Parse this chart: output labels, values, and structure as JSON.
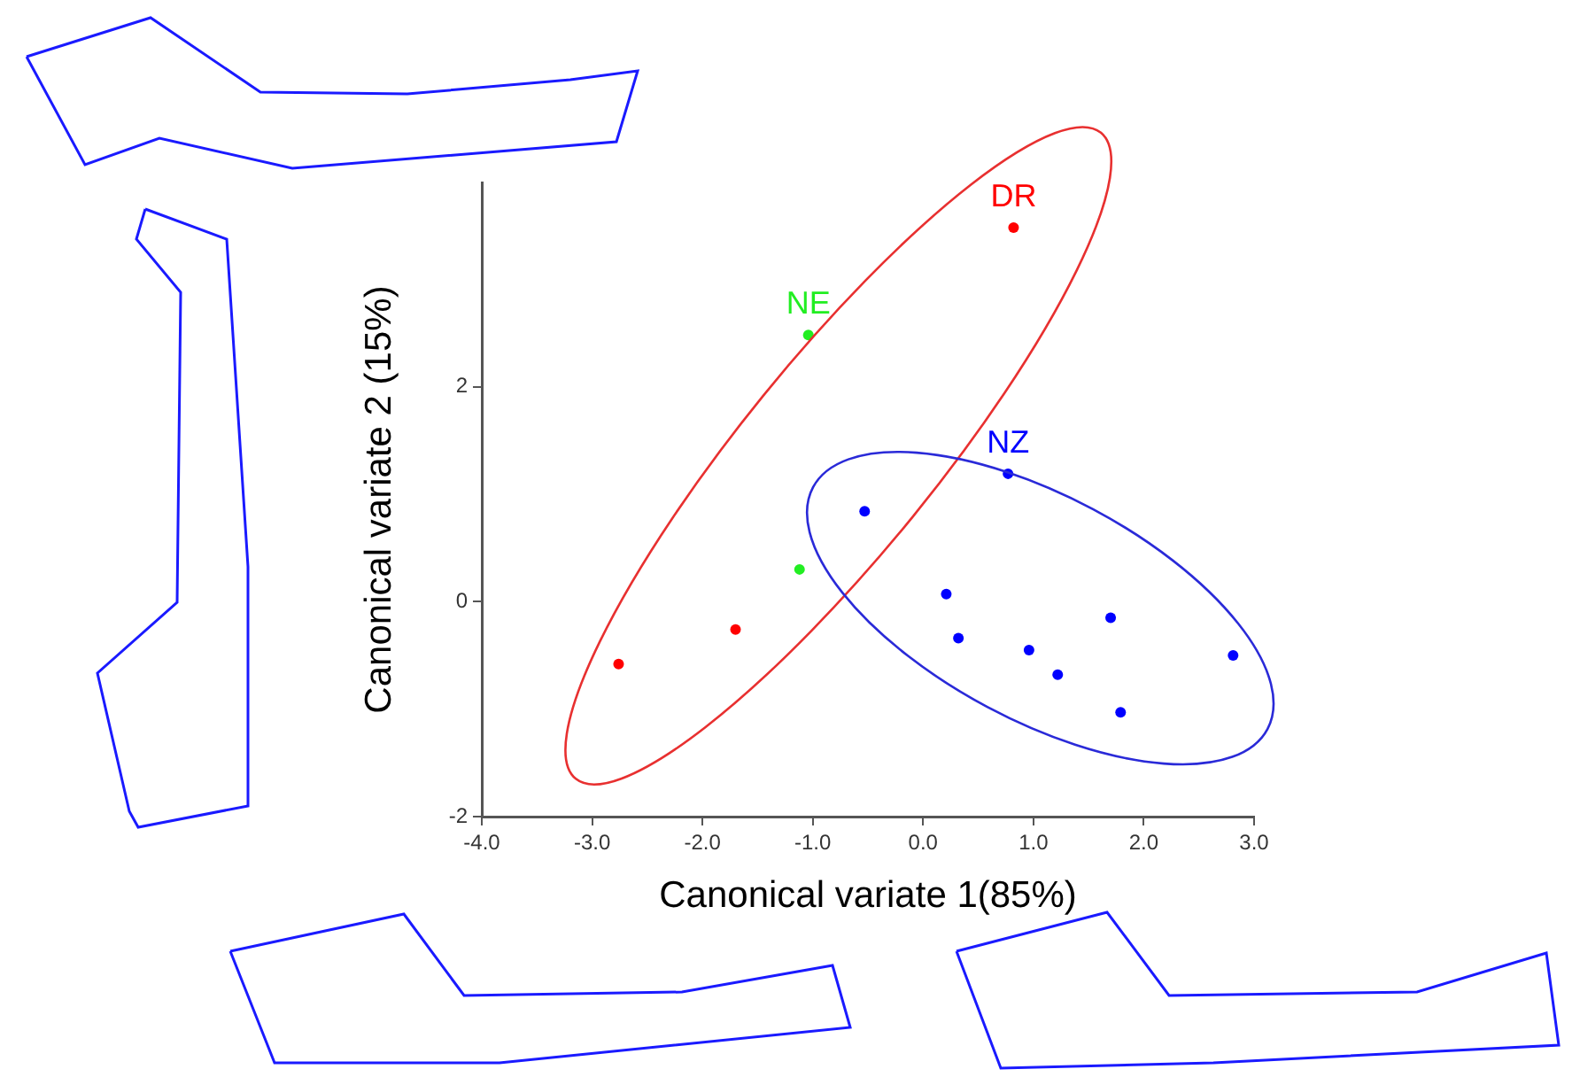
{
  "chart_data": {
    "type": "scatter",
    "xlabel": "Canonical variate 1(85%)",
    "ylabel": "Canonical variate 2 (15%)",
    "xlim": [
      -4,
      3
    ],
    "ylim": [
      -2,
      3.9
    ],
    "xticks": [
      {
        "value": -4,
        "label": "-4.0"
      },
      {
        "value": -3,
        "label": "-3.0"
      },
      {
        "value": -2,
        "label": "-2.0"
      },
      {
        "value": -1,
        "label": "-1.0"
      },
      {
        "value": 0,
        "label": "0.0"
      },
      {
        "value": 1,
        "label": "1.0"
      },
      {
        "value": 2,
        "label": "2.0"
      },
      {
        "value": 3,
        "label": "3.0"
      }
    ],
    "yticks": [
      -2,
      0,
      2
    ],
    "grid": false,
    "legend": false,
    "marker": "circle",
    "series": [
      {
        "name": "DR",
        "color": "#ff0000",
        "x": [
          0.82,
          -2.76,
          -1.7
        ],
        "values": [
          3.48,
          -0.58,
          -0.26
        ]
      },
      {
        "name": "NE",
        "color": "#22ee22",
        "x": [
          -1.04,
          -1.12
        ],
        "values": [
          2.48,
          0.3
        ]
      },
      {
        "name": "NZ",
        "color": "#0000ff",
        "x": [
          0.77,
          -0.53,
          0.21,
          0.32,
          0.96,
          1.22,
          1.7,
          1.79,
          2.81
        ],
        "values": [
          1.19,
          0.84,
          0.07,
          -0.34,
          -0.45,
          -0.68,
          -0.15,
          -1.03,
          -0.5
        ]
      }
    ]
  }
}
